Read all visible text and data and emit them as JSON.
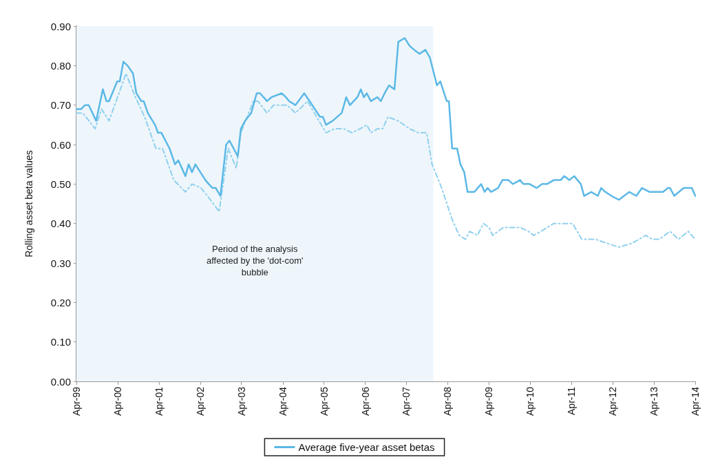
{
  "chart_data": {
    "type": "line",
    "ylabel": "Rolling asset beta values",
    "xlim": [
      "1999-04",
      "2014-04"
    ],
    "xticks": [
      {
        "value": "1999-04",
        "label": "Apr-99"
      },
      {
        "value": "2000-04",
        "label": "Apr-00"
      },
      {
        "value": "2001-04",
        "label": "Apr-01"
      },
      {
        "value": "2002-04",
        "label": "Apr-02"
      },
      {
        "value": "2003-04",
        "label": "Apr-03"
      },
      {
        "value": "2004-04",
        "label": "Apr-04"
      },
      {
        "value": "2005-04",
        "label": "Apr-05"
      },
      {
        "value": "2006-04",
        "label": "Apr-06"
      },
      {
        "value": "2007-04",
        "label": "Apr-07"
      },
      {
        "value": "2008-04",
        "label": "Apr-08"
      },
      {
        "value": "2009-04",
        "label": "Apr-09"
      },
      {
        "value": "2010-04",
        "label": "Apr-10"
      },
      {
        "value": "2011-04",
        "label": "Apr-11"
      },
      {
        "value": "2012-04",
        "label": "Apr-12"
      },
      {
        "value": "2013-04",
        "label": "Apr-13"
      },
      {
        "value": "2014-04",
        "label": "Apr-14"
      }
    ],
    "ylim": [
      0,
      0.9
    ],
    "yticks": [
      {
        "value": 0,
        "label": "0.00"
      },
      {
        "value": 0.1,
        "label": "0.10"
      },
      {
        "value": 0.2,
        "label": "0.20"
      },
      {
        "value": 0.3,
        "label": "0.30"
      },
      {
        "value": 0.4,
        "label": "0.40"
      },
      {
        "value": 0.5,
        "label": "0.50"
      },
      {
        "value": 0.6,
        "label": "0.60"
      },
      {
        "value": 0.7,
        "label": "0.70"
      },
      {
        "value": 0.8,
        "label": "0.80"
      },
      {
        "value": 0.9,
        "label": "0.90"
      }
    ],
    "grid": false,
    "legend": "bottom",
    "marker": "none",
    "bands": [
      {
        "axis": "x",
        "from": "1999-04-01",
        "to": "2007-11-25",
        "label": "Period of the analysis\naffected by the 'dot-com'\nbubble",
        "color": "#eef6fb"
      }
    ],
    "series": [
      {
        "name": "Average five-year asset betas",
        "color": "#5bb8e6",
        "line_style": "solid",
        "x": [
          "1999-04-01",
          "1999-05-14",
          "1999-06-16",
          "1999-07-19",
          "1999-09-23",
          "1999-11-21",
          "1999-12-23",
          "2000-01-15",
          "2000-03-27",
          "2000-04-19",
          "2000-05-21",
          "2000-06-27",
          "2000-08-14",
          "2000-09-13",
          "2000-10-26",
          "2000-11-17",
          "2000-12-23",
          "2001-02-25",
          "2001-03-23",
          "2001-04-22",
          "2001-07-04",
          "2001-08-21",
          "2001-09-20",
          "2001-11-21",
          "2001-12-20",
          "2002-01-19",
          "2002-02-17",
          "2002-05-17",
          "2002-06-16",
          "2002-07-19",
          "2002-08-17",
          "2002-09-27",
          "2002-11-17",
          "2002-12-16",
          "2003-02-28",
          "2003-03-27",
          "2003-05-03",
          "2003-06-27",
          "2003-08-14",
          "2003-09-13",
          "2003-11-14",
          "2003-12-23",
          "2004-03-23",
          "2004-04-29",
          "2004-05-28",
          "2004-07-22",
          "2004-10-08",
          "2004-11-25",
          "2005-02-25",
          "2005-03-23",
          "2005-04-19",
          "2005-06-16",
          "2005-09-05",
          "2005-10-15",
          "2005-11-17",
          "2005-12-20",
          "2006-01-22",
          "2006-02-21",
          "2006-03-20",
          "2006-04-15",
          "2006-05-21",
          "2006-07-19",
          "2006-08-17",
          "2006-09-20",
          "2006-10-29",
          "2006-12-16",
          "2007-01-19",
          "2007-03-16",
          "2007-04-29",
          "2007-06-09",
          "2007-07-26",
          "2007-09-16",
          "2007-10-26",
          "2007-12-27",
          "2008-01-26",
          "2008-03-23",
          "2008-04-11",
          "2008-05-10",
          "2008-06-23",
          "2008-07-22",
          "2008-08-25",
          "2008-09-23",
          "2008-11-21",
          "2009-01-22",
          "2009-02-21",
          "2009-03-20",
          "2009-04-19",
          "2009-06-20",
          "2009-07-29",
          "2009-09-20",
          "2009-10-29",
          "2010-01-01",
          "2010-01-29",
          "2010-03-27",
          "2010-05-28",
          "2010-07-15",
          "2010-08-28",
          "2010-10-26",
          "2010-12-27",
          "2011-01-26",
          "2011-03-13",
          "2011-04-26",
          "2011-06-23",
          "2011-07-22",
          "2011-09-23",
          "2011-11-21",
          "2011-12-20",
          "2012-01-26",
          "2012-03-20",
          "2012-05-25",
          "2012-08-25",
          "2012-10-26",
          "2012-12-16",
          "2013-02-21",
          "2013-05-03",
          "2013-06-20",
          "2013-08-03",
          "2013-08-21",
          "2013-09-27",
          "2013-12-20",
          "2014-01-29",
          "2014-03-02",
          "2014-04-01"
        ],
        "values": [
          0.69,
          0.69,
          0.7,
          0.7,
          0.66,
          0.74,
          0.71,
          0.71,
          0.76,
          0.76,
          0.81,
          0.8,
          0.78,
          0.73,
          0.71,
          0.71,
          0.68,
          0.65,
          0.63,
          0.63,
          0.59,
          0.55,
          0.56,
          0.52,
          0.55,
          0.53,
          0.55,
          0.51,
          0.5,
          0.49,
          0.49,
          0.47,
          0.6,
          0.61,
          0.57,
          0.64,
          0.66,
          0.68,
          0.73,
          0.73,
          0.71,
          0.72,
          0.73,
          0.72,
          0.71,
          0.7,
          0.73,
          0.71,
          0.67,
          0.67,
          0.65,
          0.66,
          0.68,
          0.72,
          0.7,
          0.71,
          0.72,
          0.74,
          0.72,
          0.73,
          0.71,
          0.72,
          0.71,
          0.73,
          0.75,
          0.74,
          0.86,
          0.87,
          0.85,
          0.84,
          0.83,
          0.84,
          0.82,
          0.75,
          0.76,
          0.71,
          0.71,
          0.59,
          0.59,
          0.55,
          0.53,
          0.48,
          0.48,
          0.5,
          0.48,
          0.49,
          0.48,
          0.49,
          0.51,
          0.51,
          0.5,
          0.51,
          0.5,
          0.5,
          0.49,
          0.5,
          0.5,
          0.51,
          0.51,
          0.52,
          0.51,
          0.52,
          0.5,
          0.47,
          0.48,
          0.47,
          0.49,
          0.48,
          0.47,
          0.46,
          0.48,
          0.47,
          0.49,
          0.48,
          0.48,
          0.48,
          0.49,
          0.49,
          0.47,
          0.49,
          0.49,
          0.49,
          0.47
        ]
      },
      {
        "color": "#8fd0ee",
        "line_style": "dashed",
        "x": [
          "1999-04-01",
          "1999-05-28",
          "1999-09-13",
          "1999-11-10",
          "2000-01-15",
          "2000-05-07",
          "2000-06-13",
          "2000-09-05",
          "2000-11-25",
          "2001-03-05",
          "2001-05-03",
          "2001-08-10",
          "2001-11-21",
          "2002-01-19",
          "2002-04-08",
          "2002-07-01",
          "2002-09-16",
          "2002-12-05",
          "2003-02-14",
          "2003-03-27",
          "2003-07-15",
          "2003-08-25",
          "2003-11-14",
          "2004-01-11",
          "2004-03-09",
          "2004-05-10",
          "2004-07-22",
          "2004-08-28",
          "2004-11-07",
          "2005-01-26",
          "2005-04-19",
          "2005-07-04",
          "2005-09-23",
          "2005-12-05",
          "2006-02-14",
          "2006-04-15",
          "2006-05-21",
          "2006-07-19",
          "2006-09-02",
          "2006-10-19",
          "2007-01-19",
          "2007-04-29",
          "2007-07-15",
          "2007-09-27",
          "2007-11-14",
          "2008-02-07",
          "2008-05-10",
          "2008-07-11",
          "2008-09-05",
          "2008-10-11",
          "2008-12-20",
          "2009-02-10",
          "2009-04-01",
          "2009-05-03",
          "2009-08-07",
          "2009-11-07",
          "2010-01-04",
          "2010-03-16",
          "2010-05-03",
          "2010-07-04",
          "2010-10-26",
          "2011-01-26",
          "2011-04-11",
          "2011-07-01",
          "2011-10-29",
          "2012-02-10",
          "2012-05-25",
          "2012-09-20",
          "2013-01-19",
          "2013-03-16",
          "2013-05-17",
          "2013-08-21",
          "2013-11-03",
          "2014-01-29",
          "2014-04-01"
        ],
        "values": [
          0.68,
          0.68,
          0.64,
          0.69,
          0.66,
          0.75,
          0.78,
          0.72,
          0.67,
          0.59,
          0.59,
          0.51,
          0.48,
          0.5,
          0.49,
          0.46,
          0.43,
          0.59,
          0.54,
          0.63,
          0.71,
          0.71,
          0.68,
          0.7,
          0.7,
          0.7,
          0.68,
          0.69,
          0.71,
          0.67,
          0.63,
          0.64,
          0.64,
          0.63,
          0.64,
          0.65,
          0.63,
          0.64,
          0.64,
          0.67,
          0.66,
          0.64,
          0.63,
          0.63,
          0.55,
          0.49,
          0.41,
          0.37,
          0.36,
          0.38,
          0.37,
          0.4,
          0.39,
          0.37,
          0.39,
          0.39,
          0.39,
          0.38,
          0.37,
          0.38,
          0.4,
          0.4,
          0.4,
          0.36,
          0.36,
          0.35,
          0.34,
          0.35,
          0.37,
          0.36,
          0.36,
          0.38,
          0.36,
          0.38,
          0.36
        ]
      }
    ]
  }
}
